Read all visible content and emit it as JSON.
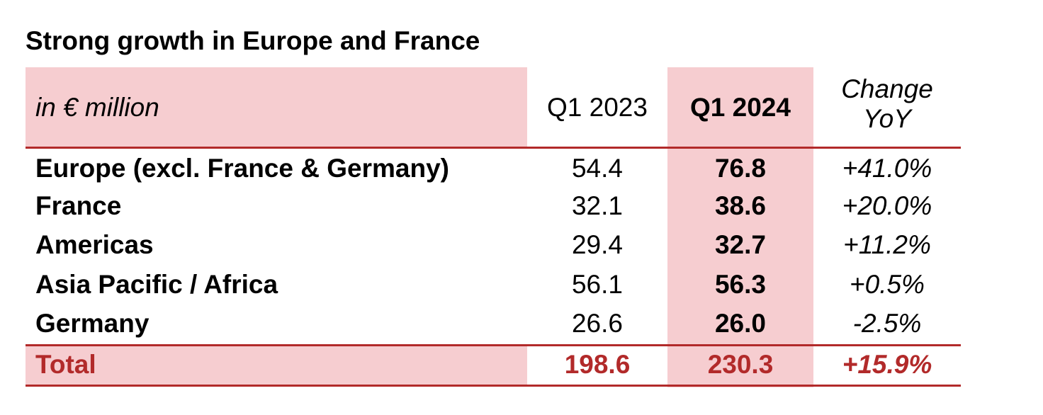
{
  "title": "Strong growth in Europe and France",
  "table": {
    "header": {
      "label": "in € million",
      "q1_2023": "Q1 2023",
      "q1_2024": "Q1 2024",
      "change_line1": "Change",
      "change_line2": "YoY"
    },
    "rows": [
      {
        "label": "Europe (excl. France & Germany)",
        "q1_2023": "54.4",
        "q1_2024": "76.8",
        "change": "+41.0%"
      },
      {
        "label": "France",
        "q1_2023": "32.1",
        "q1_2024": "38.6",
        "change": "+20.0%"
      },
      {
        "label": "Americas",
        "q1_2023": "29.4",
        "q1_2024": "32.7",
        "change": "+11.2%"
      },
      {
        "label": "Asia Pacific / Africa",
        "q1_2023": "56.1",
        "q1_2024": "56.3",
        "change": "+0.5%"
      },
      {
        "label": "Germany",
        "q1_2023": "26.6",
        "q1_2024": "26.0",
        "change": "-2.5%"
      }
    ],
    "total": {
      "label": "Total",
      "q1_2023": "198.6",
      "q1_2024": "230.3",
      "change": "+15.9%"
    }
  },
  "colors": {
    "header_fill": "#f6cdd0",
    "rule": "#b22a2a",
    "total_text": "#b22a2a"
  }
}
